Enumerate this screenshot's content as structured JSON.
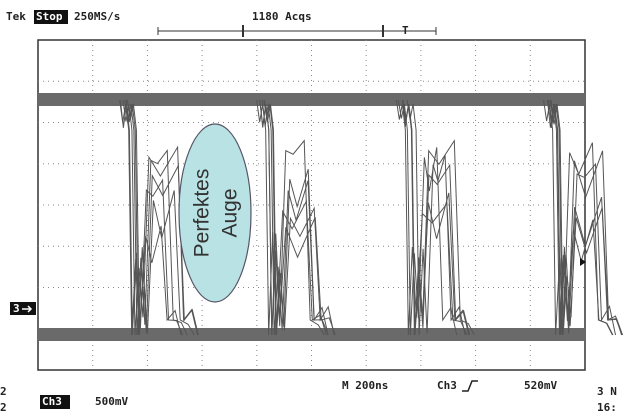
{
  "header": {
    "brand": "Tek",
    "state": "Stop",
    "sample_rate": "250MS/s",
    "acquisitions": "1180 Acqs",
    "trigger_marker": "T"
  },
  "screen": {
    "channel_marker": "3",
    "annotation": [
      "Perfektes",
      "Auge"
    ]
  },
  "footer": {
    "channel": "Ch3",
    "scale": "500mV",
    "timebase": "M 200ns",
    "trigger_source": "Ch3",
    "trigger_level": "520mV",
    "side_left": [
      "2",
      "2"
    ],
    "side_right": [
      "3 N",
      "16:"
    ]
  }
}
